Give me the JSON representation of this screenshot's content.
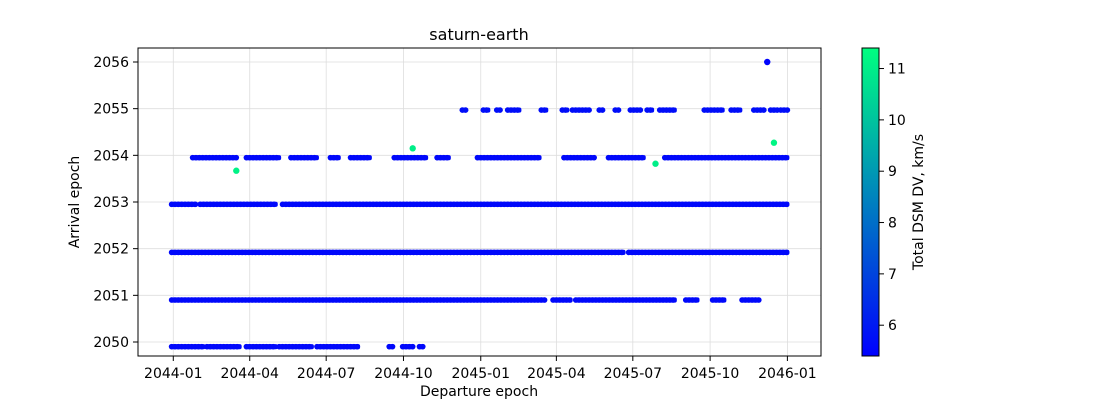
{
  "chart_data": {
    "type": "scatter",
    "title": "saturn-earth",
    "xlabel": "Departure epoch",
    "ylabel": "Arrival epoch",
    "x_ticks": [
      "2044-01",
      "2044-04",
      "2044-07",
      "2044-10",
      "2045-01",
      "2045-04",
      "2045-07",
      "2045-10",
      "2046-01"
    ],
    "y_ticks": [
      "2050",
      "2051",
      "2052",
      "2053",
      "2054",
      "2055",
      "2056"
    ],
    "xlim": [
      "2043-11-20",
      "2046-02-10"
    ],
    "ylim": [
      2049.7,
      2056.3
    ],
    "grid": true,
    "colorbar": {
      "label": "Total DSM DV, km/s",
      "range": [
        5.4,
        11.4
      ],
      "ticks": [
        "6",
        "7",
        "8",
        "9",
        "10",
        "11"
      ],
      "colormap": [
        "#0000ff",
        "#00ff80"
      ]
    },
    "bands": [
      {
        "arrival": 2049.9,
        "dv": 5.6,
        "segments": [
          [
            "2043-12-30",
            "2044-02-06"
          ],
          [
            "2044-02-10",
            "2044-03-20"
          ],
          [
            "2044-03-28",
            "2044-05-02"
          ],
          [
            "2044-05-06",
            "2044-06-14"
          ],
          [
            "2044-06-20",
            "2044-08-08"
          ],
          [
            "2044-09-14",
            "2044-09-18"
          ],
          [
            "2044-09-30",
            "2044-10-12"
          ],
          [
            "2044-10-20",
            "2044-10-24"
          ]
        ]
      },
      {
        "arrival": 2050.9,
        "dv": 5.6,
        "segments": [
          [
            "2043-12-30",
            "2045-03-18"
          ],
          [
            "2045-03-28",
            "2045-04-18"
          ],
          [
            "2045-04-24",
            "2045-08-20"
          ],
          [
            "2045-09-02",
            "2045-09-16"
          ],
          [
            "2045-10-04",
            "2045-10-18"
          ],
          [
            "2045-11-08",
            "2045-11-28"
          ]
        ]
      },
      {
        "arrival": 2051.92,
        "dv": 5.6,
        "segments": [
          [
            "2043-12-30",
            "2045-06-20"
          ],
          [
            "2045-06-26",
            "2046-01-01"
          ]
        ]
      },
      {
        "arrival": 2052.95,
        "dv": 5.6,
        "segments": [
          [
            "2043-12-30",
            "2044-01-28"
          ],
          [
            "2044-02-02",
            "2044-05-02"
          ],
          [
            "2044-05-10",
            "2046-01-01"
          ]
        ]
      },
      {
        "arrival": 2053.95,
        "dv": 5.6,
        "segments": [
          [
            "2044-01-24",
            "2044-03-16"
          ],
          [
            "2044-03-28",
            "2044-05-06"
          ],
          [
            "2044-05-20",
            "2044-06-20"
          ],
          [
            "2044-07-06",
            "2044-07-16"
          ],
          [
            "2044-07-30",
            "2044-08-22"
          ],
          [
            "2044-09-20",
            "2044-10-28"
          ],
          [
            "2044-11-10",
            "2044-11-24"
          ],
          [
            "2044-12-28",
            "2045-03-12"
          ],
          [
            "2045-04-10",
            "2045-05-16"
          ],
          [
            "2045-06-02",
            "2045-07-14"
          ],
          [
            "2045-08-08",
            "2046-01-01"
          ]
        ]
      },
      {
        "arrival": 2054.97,
        "dv": 5.7,
        "segments": [
          [
            "2044-12-10",
            "2044-12-14"
          ],
          [
            "2045-01-04",
            "2045-01-10"
          ],
          [
            "2045-01-20",
            "2045-01-24"
          ],
          [
            "2045-02-02",
            "2045-02-16"
          ],
          [
            "2045-03-14",
            "2045-03-20"
          ],
          [
            "2045-04-08",
            "2045-04-14"
          ],
          [
            "2045-04-20",
            "2045-05-10"
          ],
          [
            "2045-05-22",
            "2045-05-26"
          ],
          [
            "2045-06-10",
            "2045-06-14"
          ],
          [
            "2045-06-28",
            "2045-07-10"
          ],
          [
            "2045-07-18",
            "2045-07-24"
          ],
          [
            "2045-08-02",
            "2045-08-20"
          ],
          [
            "2045-09-24",
            "2045-10-16"
          ],
          [
            "2045-10-26",
            "2045-11-06"
          ],
          [
            "2045-11-22",
            "2045-12-04"
          ],
          [
            "2045-12-12",
            "2045-12-20"
          ],
          [
            "2045-12-24",
            "2046-01-01"
          ]
        ]
      }
    ],
    "points": [
      {
        "x": "2044-03-16",
        "y": 2053.67,
        "dv": 11.1
      },
      {
        "x": "2044-10-12",
        "y": 2054.15,
        "dv": 11.0
      },
      {
        "x": "2045-07-28",
        "y": 2053.82,
        "dv": 11.0
      },
      {
        "x": "2045-12-16",
        "y": 2054.27,
        "dv": 11.2
      },
      {
        "x": "2045-12-08",
        "y": 2056.0,
        "dv": 5.5
      }
    ]
  }
}
